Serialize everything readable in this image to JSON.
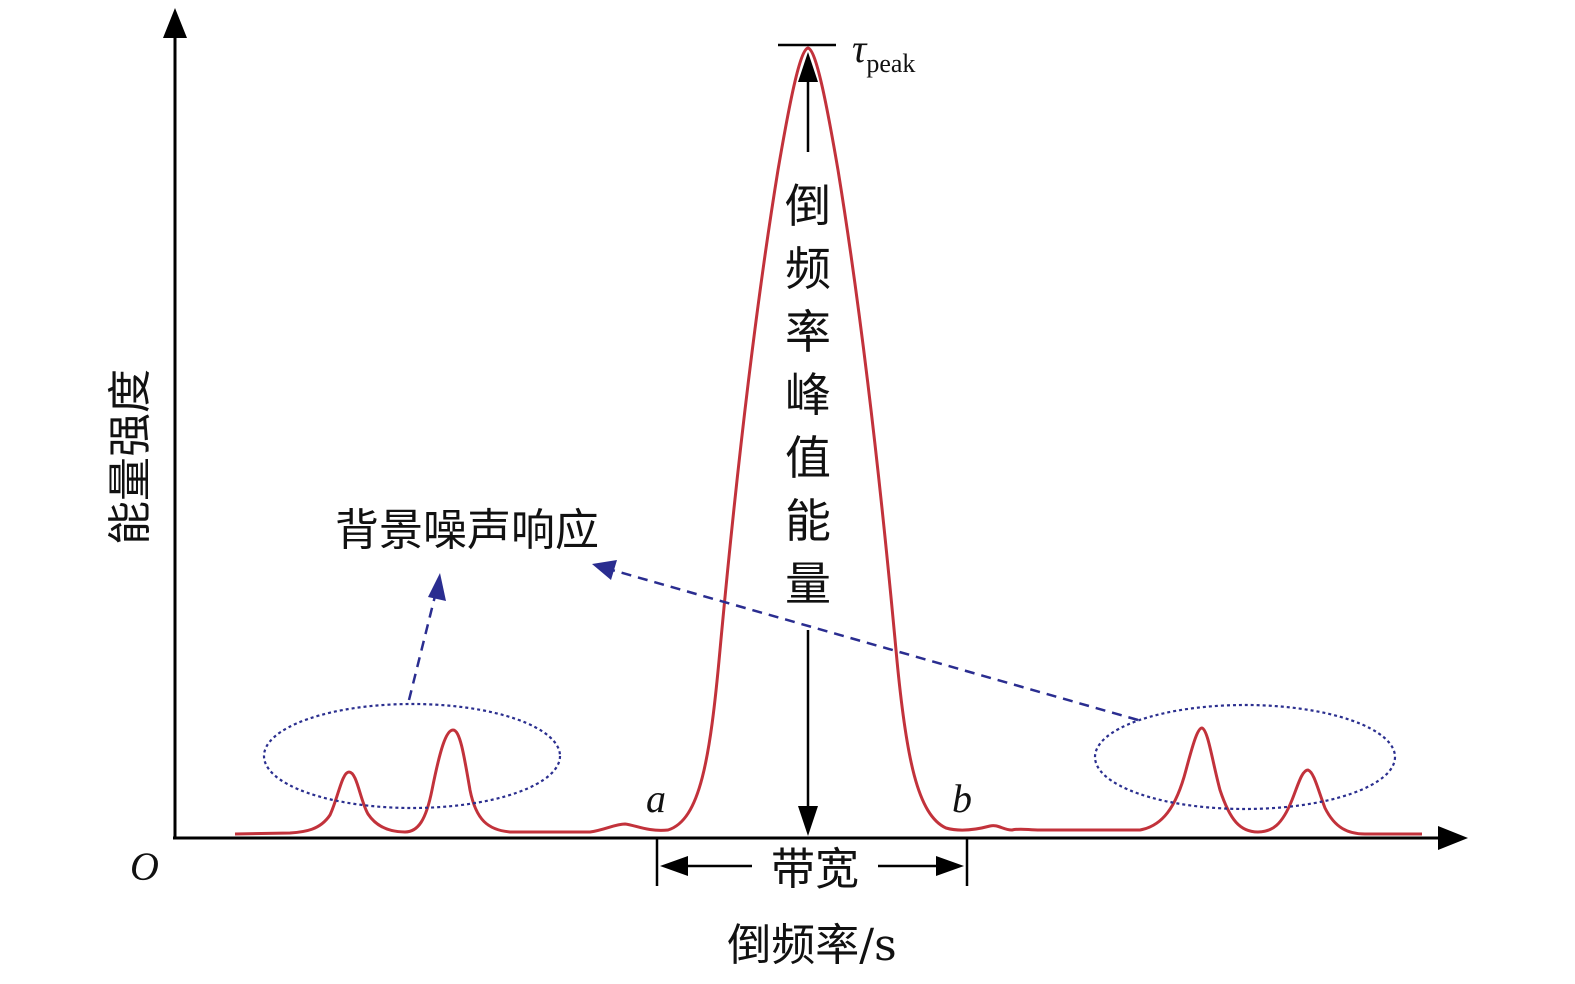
{
  "axes": {
    "y_label": "能量强度",
    "x_label": "倒频率/s",
    "origin_label": "O"
  },
  "annotations": {
    "peak_symbol": "τ",
    "peak_subscript": "peak",
    "peak_energy_label": "倒频率峰值能量",
    "bandwidth_label": "带宽",
    "left_bound": "a",
    "right_bound": "b",
    "noise_label": "背景噪声响应"
  },
  "colors": {
    "signal_curve": "#c2323b",
    "noise_markers": "#2b2f8f",
    "axes": "#000000"
  }
}
